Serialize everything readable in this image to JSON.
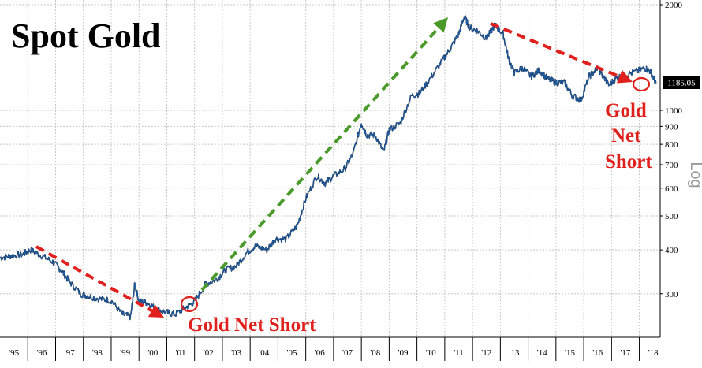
{
  "chart_data": {
    "type": "line",
    "title": "Spot Gold",
    "yscale": "log",
    "scale_label": "Log",
    "ylim": [
      195,
      2000
    ],
    "xlim": [
      1995.0,
      2018.75
    ],
    "y_ticks": [
      300,
      400,
      500,
      600,
      700,
      800,
      900,
      1000,
      2000
    ],
    "x_ticks": [
      {
        "label": "'95",
        "x": 1995.5
      },
      {
        "label": "'96",
        "x": 1996.5
      },
      {
        "label": "'97",
        "x": 1997.5
      },
      {
        "label": "'98",
        "x": 1998.5
      },
      {
        "label": "'99",
        "x": 1999.5
      },
      {
        "label": "'00",
        "x": 2000.5
      },
      {
        "label": "'01",
        "x": 2001.5
      },
      {
        "label": "'02",
        "x": 2002.5
      },
      {
        "label": "'03",
        "x": 2003.5
      },
      {
        "label": "'04",
        "x": 2004.5
      },
      {
        "label": "'05",
        "x": 2005.5
      },
      {
        "label": "'06",
        "x": 2006.5
      },
      {
        "label": "'07",
        "x": 2007.5
      },
      {
        "label": "'08",
        "x": 2008.5
      },
      {
        "label": "'09",
        "x": 2009.5
      },
      {
        "label": "'10",
        "x": 2010.5
      },
      {
        "label": "'11",
        "x": 2011.5
      },
      {
        "label": "'12",
        "x": 2012.5
      },
      {
        "label": "'13",
        "x": 2013.5
      },
      {
        "label": "'14",
        "x": 2014.5
      },
      {
        "label": "'15",
        "x": 2015.5
      },
      {
        "label": "'16",
        "x": 2016.5
      },
      {
        "label": "'17",
        "x": 2017.5
      },
      {
        "label": "'18",
        "x": 2018.5
      }
    ],
    "last_value": 1185.05,
    "series": [
      {
        "color": "#1f5fa8",
        "x": [
          1995.0,
          1995.4,
          1995.8,
          1996.1,
          1996.5,
          1996.9,
          1997.2,
          1997.5,
          1997.9,
          1998.2,
          1998.6,
          1999.0,
          1999.4,
          1999.7,
          1999.85,
          2000.0,
          2000.3,
          2000.6,
          2001.0,
          2001.3,
          2001.7,
          2002.0,
          2002.4,
          2002.8,
          2003.1,
          2003.5,
          2003.9,
          2004.2,
          2004.6,
          2004.9,
          2005.3,
          2005.7,
          2006.0,
          2006.4,
          2006.7,
          2007.0,
          2007.4,
          2007.7,
          2008.0,
          2008.2,
          2008.5,
          2008.8,
          2009.0,
          2009.4,
          2009.8,
          2010.1,
          2010.5,
          2010.9,
          2011.2,
          2011.5,
          2011.7,
          2011.9,
          2012.2,
          2012.5,
          2012.8,
          2013.1,
          2013.3,
          2013.5,
          2013.8,
          2014.1,
          2014.4,
          2014.7,
          2015.0,
          2015.3,
          2015.6,
          2015.9,
          2016.2,
          2016.5,
          2016.9,
          2017.2,
          2017.5,
          2017.9,
          2018.2,
          2018.4,
          2018.6
        ],
        "values": [
          380,
          385,
          388,
          400,
          385,
          370,
          350,
          325,
          300,
          295,
          290,
          287,
          262,
          258,
          320,
          285,
          283,
          272,
          265,
          262,
          275,
          285,
          320,
          330,
          350,
          360,
          395,
          410,
          400,
          430,
          430,
          470,
          560,
          650,
          620,
          650,
          680,
          750,
          920,
          850,
          850,
          760,
          880,
          920,
          1100,
          1120,
          1240,
          1380,
          1500,
          1650,
          1850,
          1720,
          1680,
          1600,
          1750,
          1650,
          1400,
          1280,
          1320,
          1250,
          1300,
          1230,
          1200,
          1200,
          1100,
          1070,
          1250,
          1320,
          1180,
          1240,
          1260,
          1290,
          1320,
          1290,
          1195
        ]
      }
    ],
    "annotations": [
      {
        "text": "Gold Net Short"
      },
      {
        "lines": [
          "Gold",
          "Net",
          "Short"
        ]
      }
    ]
  }
}
